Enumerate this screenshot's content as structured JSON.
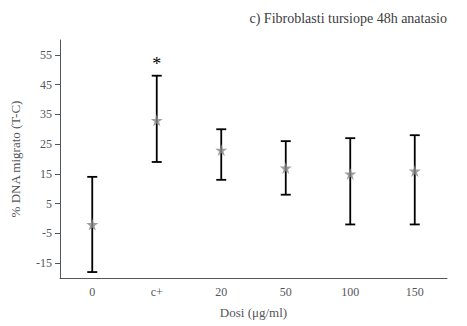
{
  "chart_data": {
    "type": "scatter",
    "title": "c) Fibroblasti tursiope 48h anatasio",
    "x_label": "Dosi (μg/ml)",
    "y_label": "% DNA migrato (T-C)",
    "categories": [
      "0",
      "c+",
      "20",
      "50",
      "100",
      "150"
    ],
    "values": [
      -2,
      33,
      23,
      17,
      15,
      16
    ],
    "err_low": [
      16,
      14,
      10,
      9,
      17,
      18
    ],
    "err_high": [
      16,
      15,
      7,
      9,
      12,
      12
    ],
    "color": "#888888",
    "marker": "star",
    "annotations": [
      {
        "text": "*",
        "category": "c+"
      }
    ],
    "ylim": [
      -20,
      60
    ],
    "yticks": [
      -15,
      -5,
      5,
      15,
      25,
      35,
      45,
      55
    ],
    "grid": false
  }
}
